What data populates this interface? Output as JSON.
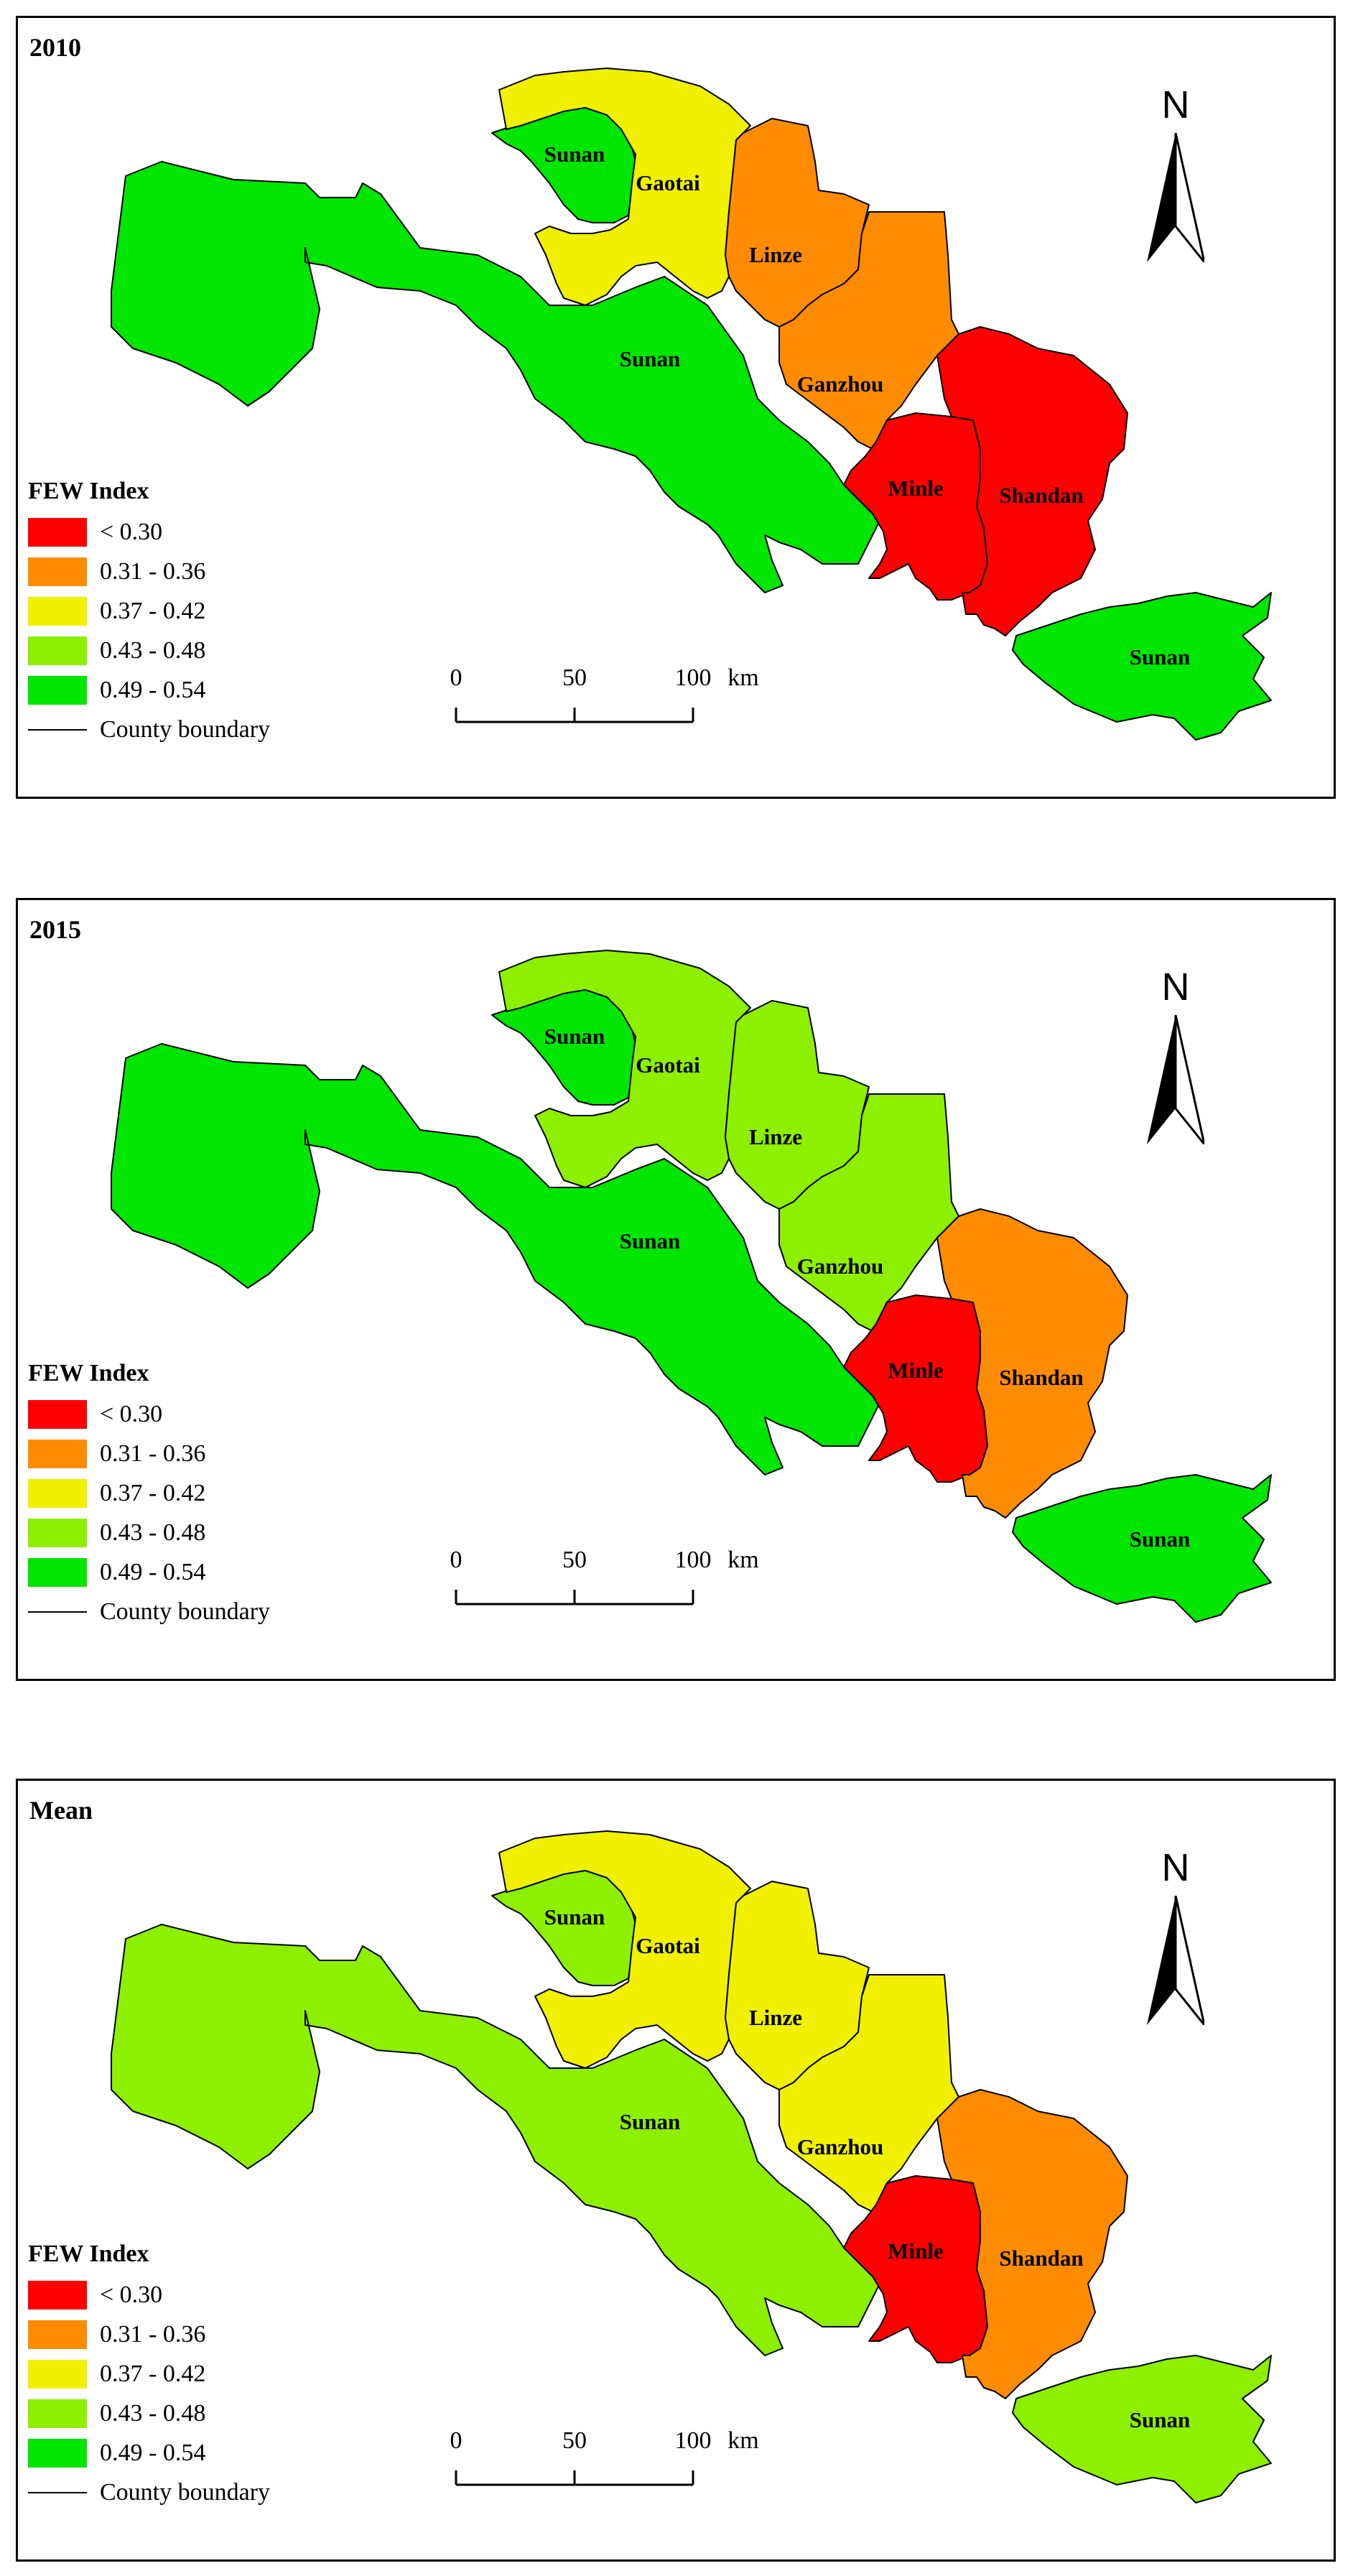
{
  "legend": {
    "title": "FEW Index",
    "classes": [
      {
        "label": "< 0.30",
        "color": "#ff0000"
      },
      {
        "label": "0.31 - 0.36",
        "color": "#ff8c00"
      },
      {
        "label": "0.37 - 0.42",
        "color": "#f0f000"
      },
      {
        "label": "0.43 - 0.48",
        "color": "#8cf000"
      },
      {
        "label": "0.49 - 0.54",
        "color": "#00e600"
      }
    ],
    "boundary_label": "County boundary"
  },
  "north_label": "N",
  "scale": {
    "ticks": [
      "0",
      "50",
      "100"
    ],
    "unit": "km"
  },
  "panels": [
    {
      "title": "2010",
      "regions": {
        "sunan_main": "0.49 - 0.54",
        "sunan_north": "0.49 - 0.54",
        "sunan_east": "0.49 - 0.54",
        "gaotai": "0.37 - 0.42",
        "linze": "0.31 - 0.36",
        "ganzhou": "0.31 - 0.36",
        "minle": "< 0.30",
        "shandan": "< 0.30"
      }
    },
    {
      "title": "2015",
      "regions": {
        "sunan_main": "0.49 - 0.54",
        "sunan_north": "0.49 - 0.54",
        "sunan_east": "0.49 - 0.54",
        "gaotai": "0.43 - 0.48",
        "linze": "0.43 - 0.48",
        "ganzhou": "0.43 - 0.48",
        "minle": "< 0.30",
        "shandan": "0.31 - 0.36"
      }
    },
    {
      "title": "Mean",
      "regions": {
        "sunan_main": "0.43 - 0.48",
        "sunan_north": "0.43 - 0.48",
        "sunan_east": "0.43 - 0.48",
        "gaotai": "0.37 - 0.42",
        "linze": "0.37 - 0.42",
        "ganzhou": "0.37 - 0.42",
        "minle": "< 0.30",
        "shandan": "0.31 - 0.36"
      }
    }
  ],
  "labels": {
    "sunan_north": "Sunan",
    "gaotai": "Gaotai",
    "linze": "Linze",
    "sunan_main": "Sunan",
    "ganzhou": "Ganzhou",
    "minle": "Minle",
    "shandan": "Shandan",
    "sunan_east": "Sunan"
  }
}
